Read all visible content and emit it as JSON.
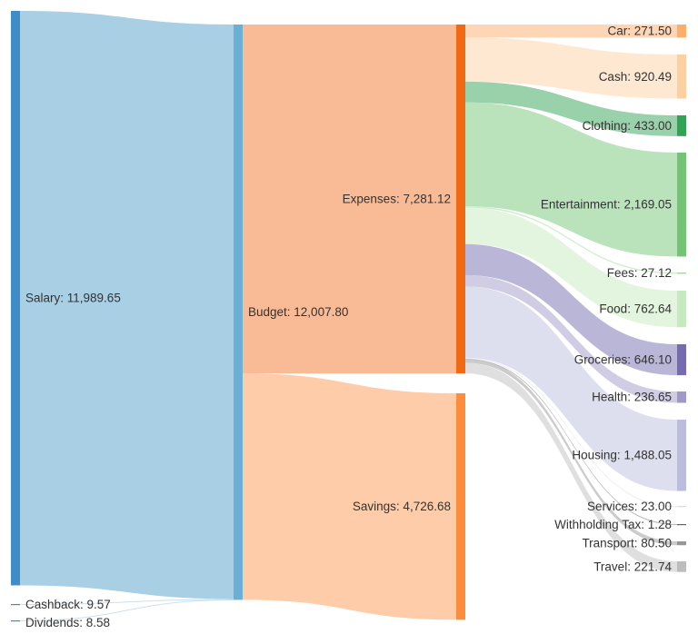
{
  "chart_data": {
    "type": "sankey",
    "nodes": [
      {
        "id": "salary",
        "label": "Salary: 11,989.65",
        "name": "Salary",
        "value": 11989.65,
        "color": "#3f8cc7"
      },
      {
        "id": "cashback",
        "label": "Cashback: 9.57",
        "name": "Cashback",
        "value": 9.57,
        "color": "#3f8cc7"
      },
      {
        "id": "dividends",
        "label": "Dividends: 8.58",
        "name": "Dividends",
        "value": 8.58,
        "color": "#3f8cc7"
      },
      {
        "id": "budget",
        "label": "Budget: 12,007.80",
        "name": "Budget",
        "value": 12007.8,
        "color": "#6baed6"
      },
      {
        "id": "expenses",
        "label": "Expenses: 7,281.12",
        "name": "Expenses",
        "value": 7281.12,
        "color": "#f16913"
      },
      {
        "id": "savings",
        "label": "Savings: 4,726.68",
        "name": "Savings",
        "value": 4726.68,
        "color": "#fd8d3c"
      },
      {
        "id": "car",
        "label": "Car: 271.50",
        "name": "Car",
        "value": 271.5,
        "color": "#fdae6b"
      },
      {
        "id": "cash",
        "label": "Cash: 920.49",
        "name": "Cash",
        "value": 920.49,
        "color": "#fdd0a2"
      },
      {
        "id": "clothing",
        "label": "Clothing: 433.00",
        "name": "Clothing",
        "value": 433.0,
        "color": "#31a354"
      },
      {
        "id": "entertainment",
        "label": "Entertainment: 2,169.05",
        "name": "Entertainment",
        "value": 2169.05,
        "color": "#74c476"
      },
      {
        "id": "fees",
        "label": "Fees: 27.12",
        "name": "Fees",
        "value": 27.12,
        "color": "#a1d99b"
      },
      {
        "id": "food",
        "label": "Food: 762.64",
        "name": "Food",
        "value": 762.64,
        "color": "#c7e9c0"
      },
      {
        "id": "groceries",
        "label": "Groceries: 646.10",
        "name": "Groceries",
        "value": 646.1,
        "color": "#756bb1"
      },
      {
        "id": "health",
        "label": "Health: 236.65",
        "name": "Health",
        "value": 236.65,
        "color": "#9e9ac8"
      },
      {
        "id": "housing",
        "label": "Housing: 1,488.05",
        "name": "Housing",
        "value": 1488.05,
        "color": "#bcbddc"
      },
      {
        "id": "services",
        "label": "Services: 23.00",
        "name": "Services",
        "value": 23.0,
        "color": "#dadaeb"
      },
      {
        "id": "withholding",
        "label": "Withholding Tax: 1.28",
        "name": "Withholding Tax",
        "value": 1.28,
        "color": "#636363"
      },
      {
        "id": "transport",
        "label": "Transport: 80.50",
        "name": "Transport",
        "value": 80.5,
        "color": "#969696"
      },
      {
        "id": "travel",
        "label": "Travel: 221.74",
        "name": "Travel",
        "value": 221.74,
        "color": "#bdbdbd"
      }
    ],
    "links": [
      {
        "source": "salary",
        "target": "budget",
        "value": 11989.65
      },
      {
        "source": "cashback",
        "target": "budget",
        "value": 9.57
      },
      {
        "source": "dividends",
        "target": "budget",
        "value": 8.58
      },
      {
        "source": "budget",
        "target": "expenses",
        "value": 7281.12
      },
      {
        "source": "budget",
        "target": "savings",
        "value": 4726.68
      },
      {
        "source": "expenses",
        "target": "car",
        "value": 271.5
      },
      {
        "source": "expenses",
        "target": "cash",
        "value": 920.49
      },
      {
        "source": "expenses",
        "target": "clothing",
        "value": 433.0
      },
      {
        "source": "expenses",
        "target": "entertainment",
        "value": 2169.05
      },
      {
        "source": "expenses",
        "target": "fees",
        "value": 27.12
      },
      {
        "source": "expenses",
        "target": "food",
        "value": 762.64
      },
      {
        "source": "expenses",
        "target": "groceries",
        "value": 646.1
      },
      {
        "source": "expenses",
        "target": "health",
        "value": 236.65
      },
      {
        "source": "expenses",
        "target": "housing",
        "value": 1488.05
      },
      {
        "source": "expenses",
        "target": "services",
        "value": 23.0
      },
      {
        "source": "expenses",
        "target": "withholding",
        "value": 1.28
      },
      {
        "source": "expenses",
        "target": "transport",
        "value": 80.5
      },
      {
        "source": "expenses",
        "target": "travel",
        "value": 221.74
      }
    ]
  }
}
